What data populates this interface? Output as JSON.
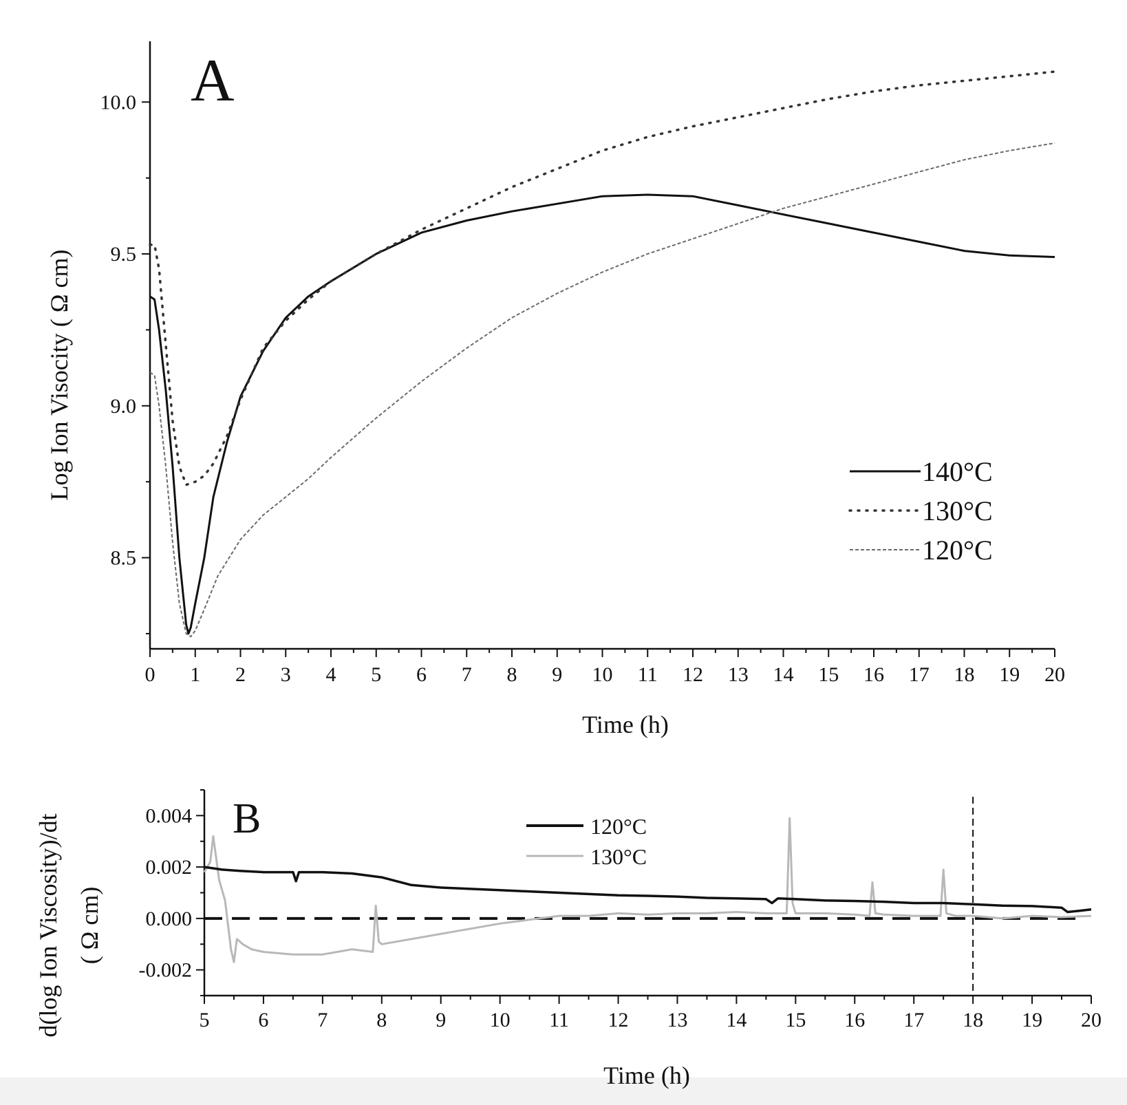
{
  "chart_data": [
    {
      "panel": "A",
      "type": "line",
      "title": "",
      "panel_label": "A",
      "xlabel": "Time (h)",
      "ylabel": "Log Ion Visocity ( Ω cm)",
      "xlim": [
        0,
        20
      ],
      "ylim": [
        8.2,
        10.2
      ],
      "xticks": [
        "0",
        "1",
        "2",
        "3",
        "4",
        "5",
        "6",
        "7",
        "8",
        "9",
        "10",
        "11",
        "12",
        "13",
        "14",
        "15",
        "16",
        "17",
        "18",
        "19",
        "20"
      ],
      "yticks": [
        "8.5",
        "9.0",
        "9.5",
        "10.0"
      ],
      "legend_position": "center-right",
      "series": [
        {
          "name": "140°C",
          "style": "solid",
          "color": "#111111",
          "x": [
            0,
            0.1,
            0.2,
            0.35,
            0.5,
            0.65,
            0.8,
            0.85,
            0.9,
            1.0,
            1.2,
            1.4,
            1.7,
            2.0,
            2.5,
            3.0,
            3.5,
            4.0,
            5.0,
            6.0,
            7.0,
            8.0,
            9.0,
            10.0,
            11.0,
            12.0,
            13.0,
            14.0,
            15.0,
            16.0,
            17.0,
            18.0,
            19.0,
            20.0
          ],
          "y": [
            9.36,
            9.35,
            9.25,
            9.05,
            8.8,
            8.5,
            8.28,
            8.25,
            8.27,
            8.35,
            8.5,
            8.7,
            8.88,
            9.03,
            9.18,
            9.29,
            9.36,
            9.41,
            9.5,
            9.57,
            9.61,
            9.64,
            9.665,
            9.69,
            9.695,
            9.69,
            9.66,
            9.63,
            9.6,
            9.57,
            9.54,
            9.51,
            9.495,
            9.49
          ]
        },
        {
          "name": "130°C",
          "style": "dotted",
          "color": "#333333",
          "x": [
            0,
            0.1,
            0.2,
            0.35,
            0.5,
            0.65,
            0.8,
            1.0,
            1.2,
            1.4,
            1.7,
            2.0,
            2.5,
            3.0,
            3.5,
            4.0,
            5.0,
            6.0,
            7.0,
            8.0,
            9.0,
            10.0,
            11.0,
            12.0,
            13.0,
            14.0,
            15.0,
            16.0,
            17.0,
            18.0,
            19.0,
            20.0
          ],
          "y": [
            9.53,
            9.53,
            9.45,
            9.2,
            8.95,
            8.8,
            8.74,
            8.75,
            8.77,
            8.81,
            8.9,
            9.02,
            9.19,
            9.28,
            9.35,
            9.41,
            9.5,
            9.58,
            9.65,
            9.72,
            9.78,
            9.84,
            9.885,
            9.92,
            9.95,
            9.98,
            10.01,
            10.035,
            10.055,
            10.07,
            10.085,
            10.1
          ]
        },
        {
          "name": "120°C",
          "style": "dashed",
          "color": "#6a6a6a",
          "x": [
            0,
            0.1,
            0.2,
            0.35,
            0.5,
            0.65,
            0.8,
            0.9,
            1.0,
            1.2,
            1.5,
            2.0,
            2.5,
            3.0,
            3.5,
            4.0,
            5.0,
            6.0,
            7.0,
            8.0,
            9.0,
            10.0,
            11.0,
            12.0,
            13.0,
            14.0,
            15.0,
            16.0,
            17.0,
            18.0,
            19.0,
            20.0
          ],
          "y": [
            9.11,
            9.1,
            9.0,
            8.8,
            8.55,
            8.35,
            8.25,
            8.24,
            8.26,
            8.33,
            8.44,
            8.56,
            8.64,
            8.7,
            8.76,
            8.83,
            8.96,
            9.08,
            9.19,
            9.29,
            9.37,
            9.44,
            9.5,
            9.55,
            9.6,
            9.65,
            9.69,
            9.73,
            9.77,
            9.81,
            9.84,
            9.865
          ]
        }
      ]
    },
    {
      "panel": "B",
      "type": "line",
      "title": "",
      "panel_label": "B",
      "xlabel": "Time (h)",
      "ylabel": "d(log Ion Viscosity)/dt",
      "ylabel_line2": "( Ω cm)",
      "xlim": [
        5,
        20
      ],
      "ylim": [
        -0.003,
        0.005
      ],
      "xticks": [
        "5",
        "6",
        "7",
        "8",
        "9",
        "10",
        "11",
        "12",
        "13",
        "14",
        "15",
        "16",
        "17",
        "18",
        "19",
        "20"
      ],
      "yticks": [
        "-0.002",
        "0.000",
        "0.002",
        "0.004"
      ],
      "legend_position": "top-center",
      "reference_lines": [
        {
          "orientation": "horizontal",
          "value": 0.0,
          "style": "dashed"
        },
        {
          "orientation": "vertical",
          "value": 18,
          "style": "dashed"
        }
      ],
      "series": [
        {
          "name": "120°C",
          "color": "#111111",
          "x": [
            5,
            5.3,
            5.6,
            6.0,
            6.5,
            6.55,
            6.6,
            7.0,
            7.5,
            8.0,
            8.5,
            9.0,
            9.5,
            10.0,
            10.5,
            11.0,
            11.5,
            12.0,
            12.5,
            13.0,
            13.5,
            14.0,
            14.5,
            14.6,
            14.7,
            15.0,
            15.5,
            16.0,
            16.5,
            17.0,
            17.5,
            18.0,
            18.5,
            19.0,
            19.5,
            19.6,
            19.8,
            20.0
          ],
          "y": [
            0.002,
            0.0019,
            0.00185,
            0.0018,
            0.0018,
            0.00145,
            0.0018,
            0.0018,
            0.00175,
            0.0016,
            0.0013,
            0.0012,
            0.00115,
            0.0011,
            0.00105,
            0.001,
            0.00095,
            0.0009,
            0.00088,
            0.00085,
            0.0008,
            0.00078,
            0.00075,
            0.0006,
            0.00078,
            0.00075,
            0.0007,
            0.00068,
            0.00065,
            0.0006,
            0.0006,
            0.00055,
            0.0005,
            0.00048,
            0.00042,
            0.00025,
            0.0003,
            0.00035
          ]
        },
        {
          "name": "130°C",
          "color": "#b8b8b8",
          "x": [
            5,
            5.1,
            5.15,
            5.25,
            5.35,
            5.45,
            5.5,
            5.55,
            5.65,
            5.8,
            6.0,
            6.5,
            7.0,
            7.5,
            7.85,
            7.9,
            7.95,
            8.0,
            8.5,
            9.0,
            9.5,
            10.0,
            10.5,
            11.0,
            11.5,
            12.0,
            12.5,
            13.0,
            13.5,
            14.0,
            14.5,
            14.85,
            14.9,
            14.95,
            15.0,
            15.5,
            16.0,
            16.25,
            16.3,
            16.35,
            16.5,
            17.0,
            17.45,
            17.5,
            17.55,
            17.7,
            18.0,
            18.5,
            19.0,
            19.5,
            20.0
          ],
          "y": [
            0.0018,
            0.0022,
            0.0032,
            0.0015,
            0.0007,
            -0.0012,
            -0.0017,
            -0.0008,
            -0.001,
            -0.0012,
            -0.0013,
            -0.0014,
            -0.0014,
            -0.0012,
            -0.0013,
            0.0005,
            -0.0009,
            -0.001,
            -0.0008,
            -0.0006,
            -0.0004,
            -0.0002,
            -5e-05,
            0.0001,
            0.0001,
            0.0002,
            0.00015,
            0.0002,
            0.0002,
            0.00025,
            0.0002,
            0.0002,
            0.0039,
            0.0006,
            0.0002,
            0.0002,
            0.00015,
            0.0001,
            0.0014,
            0.0002,
            0.00015,
            0.0001,
            0.0001,
            0.0019,
            0.0002,
            0.0001,
            0.0001,
            0.0,
            0.0001,
            5e-05,
            0.0001
          ]
        }
      ]
    }
  ]
}
